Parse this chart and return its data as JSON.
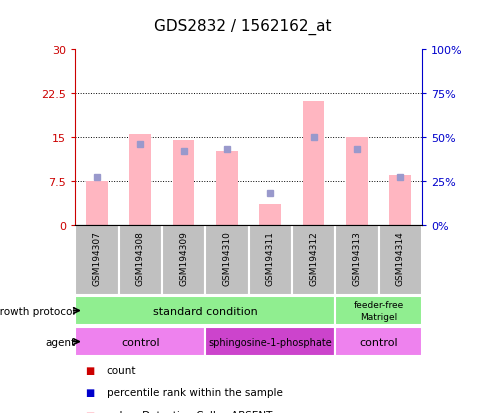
{
  "title": "GDS2832 / 1562162_at",
  "samples": [
    "GSM194307",
    "GSM194308",
    "GSM194309",
    "GSM194310",
    "GSM194311",
    "GSM194312",
    "GSM194313",
    "GSM194314"
  ],
  "pink_bar_values": [
    7.5,
    15.5,
    14.5,
    12.5,
    3.5,
    21.0,
    15.0,
    8.5
  ],
  "blue_marker_values": [
    27,
    46,
    42,
    43,
    18,
    50,
    43,
    27
  ],
  "ylim_left": [
    0,
    30
  ],
  "ylim_right": [
    0,
    100
  ],
  "yticks_left": [
    0,
    7.5,
    15,
    22.5,
    30
  ],
  "yticks_right": [
    0,
    25,
    50,
    75,
    100
  ],
  "ytick_labels_left": [
    "0",
    "7.5",
    "15",
    "22.5",
    "30"
  ],
  "ytick_labels_right": [
    "0%",
    "25%",
    "50%",
    "75%",
    "100%"
  ],
  "grid_lines": [
    7.5,
    15,
    22.5
  ],
  "pink_bar_color": "#FFB6C1",
  "blue_marker_color": "#9999CC",
  "left_axis_color": "#CC0000",
  "right_axis_color": "#0000CC",
  "sample_box_color": "#C0C0C0",
  "growth_green": "#90EE90",
  "agent_light_purple": "#EE82EE",
  "agent_dark_purple": "#CC44CC",
  "legend_red": "#CC0000",
  "legend_blue": "#0000CC",
  "title_fontsize": 11,
  "tick_fontsize": 8,
  "sample_fontsize": 6.5,
  "row_fontsize": 8,
  "legend_fontsize": 7.5,
  "sphingo_fontsize": 7,
  "bar_width": 0.5,
  "marker_size": 4
}
